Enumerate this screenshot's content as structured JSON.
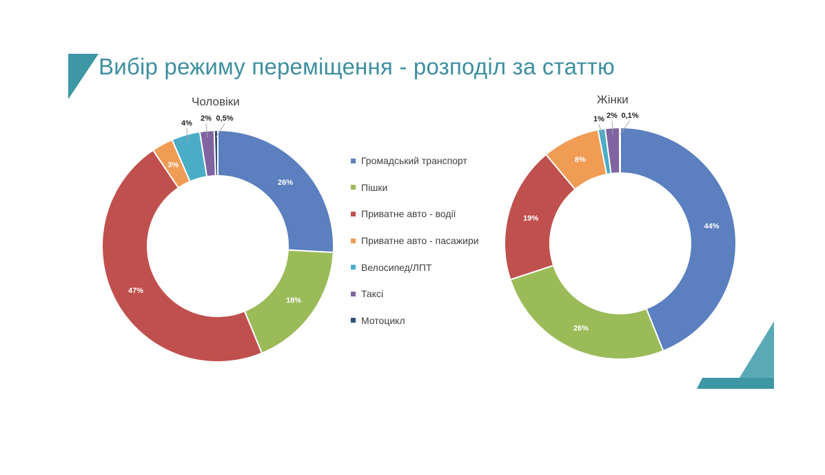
{
  "slide": {
    "title": "Вибір режиму переміщення - розподіл за статтю",
    "accent_color": "#3d97a5"
  },
  "legend": [
    {
      "label": "Громадський транспорт",
      "color": "#5b7fbf"
    },
    {
      "label": "Пішки",
      "color": "#9bbb59"
    },
    {
      "label": "Приватне авто - водії",
      "color": "#c0504d"
    },
    {
      "label": "Приватне авто - пасажири",
      "color": "#f09c55"
    },
    {
      "label": "Велосипед/ЛПТ",
      "color": "#4bacc6"
    },
    {
      "label": "Таксі",
      "color": "#8064a2"
    },
    {
      "label": "Мотоцикл",
      "color": "#2c4d75"
    }
  ],
  "chart_data": [
    {
      "type": "pie",
      "title": "Чоловіки",
      "categories": [
        "Громадський транспорт",
        "Пішки",
        "Приватне авто - водії",
        "Приватне авто - пасажири",
        "Велосипед/ЛПТ",
        "Таксі",
        "Мотоцикл"
      ],
      "values": [
        26,
        18,
        47,
        3,
        4,
        2,
        0.5
      ],
      "labels": [
        "26%",
        "18%",
        "47%",
        "3%",
        "4%",
        "2%",
        "0,5%"
      ]
    },
    {
      "type": "pie",
      "title": "Жінки",
      "categories": [
        "Громадський транспорт",
        "Пішки",
        "Приватне авто - водії",
        "Приватне авто - пасажири",
        "Велосипед/ЛПТ",
        "Таксі",
        "Мотоцикл"
      ],
      "values": [
        44,
        26,
        19,
        8,
        1,
        2,
        0.1
      ],
      "labels": [
        "44%",
        "26%",
        "19%",
        "8%",
        "1%",
        "2%",
        "0,1%"
      ]
    }
  ]
}
